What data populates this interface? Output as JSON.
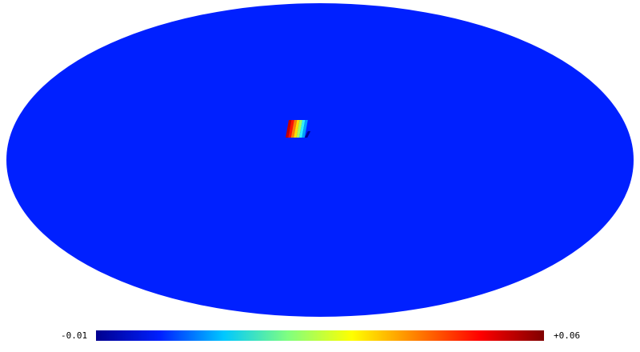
{
  "map": {
    "projection": "mollweide",
    "background_color": "#0020ff",
    "colormap": "jet",
    "colormap_stops": [
      "#00008f",
      "#0020ff",
      "#00c8ff",
      "#80ff80",
      "#ffff00",
      "#ff8000",
      "#ff0000",
      "#800000"
    ],
    "hotspot_colors": [
      "#c00000",
      "#ff1000",
      "#ff8000",
      "#ffe000",
      "#a0ff60",
      "#30f0ff",
      "#00a0ff",
      "#00008f"
    ]
  },
  "colorbar": {
    "min_label": "-0.01",
    "max_label": "+0.06"
  }
}
